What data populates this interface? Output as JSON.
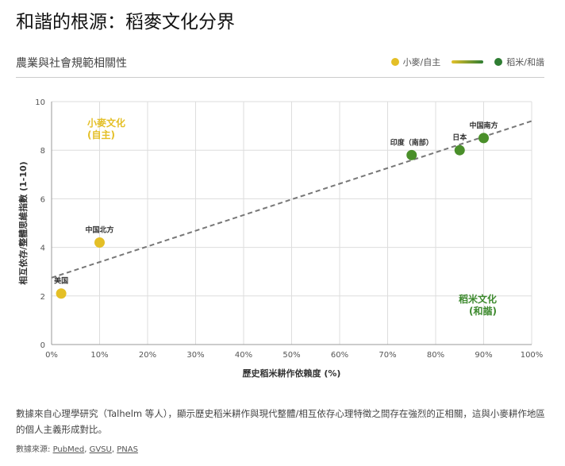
{
  "title": "和諧的根源：稻麥文化分界",
  "subtitle": "農業與社會規範相關性",
  "legend": {
    "wheat": "小麥/自主",
    "rice": "稻米/和諧",
    "wheat_color": "#e4bf26",
    "rice_color": "#2e7d32"
  },
  "chart_data": {
    "type": "scatter",
    "xlabel": "歷史稻米耕作依賴度 (%)",
    "ylabel": "相互依存/整體思維指數 (1-10)",
    "xlim": [
      0,
      100
    ],
    "ylim": [
      0,
      10
    ],
    "xticks": [
      "0%",
      "10%",
      "20%",
      "30%",
      "40%",
      "50%",
      "60%",
      "70%",
      "80%",
      "90%",
      "100%"
    ],
    "yticks": [
      "0",
      "2",
      "4",
      "6",
      "8",
      "10"
    ],
    "grid": true,
    "points": [
      {
        "label": "美国",
        "x": 2,
        "y": 2.1,
        "group": "wheat"
      },
      {
        "label": "中国北方",
        "x": 10,
        "y": 4.2,
        "group": "wheat"
      },
      {
        "label": "印度（南部）",
        "x": 75,
        "y": 7.8,
        "group": "rice"
      },
      {
        "label": "日本",
        "x": 85,
        "y": 8.0,
        "group": "rice"
      },
      {
        "label": "中国南方",
        "x": 90,
        "y": 8.5,
        "group": "rice"
      }
    ],
    "trendline": {
      "x": [
        0,
        100
      ],
      "y": [
        2.75,
        9.2
      ]
    },
    "annotations": [
      {
        "line1": "小麥文化",
        "line2": "(自主)",
        "color": "#e4bf26"
      },
      {
        "line1": "稻米文化",
        "line2": "(和諧)",
        "color": "#3d8a2e"
      }
    ]
  },
  "description": "數據來自心理學研究（Talhelm 等人），顯示歷史稻米耕作與現代整體/相互依存心理特徵之間存在強烈的正相關，這與小麥耕作地區的個人主義形成對比。",
  "sources": {
    "label": "數據來源:",
    "links": [
      "PubMed",
      "GVSU",
      "PNAS"
    ]
  }
}
